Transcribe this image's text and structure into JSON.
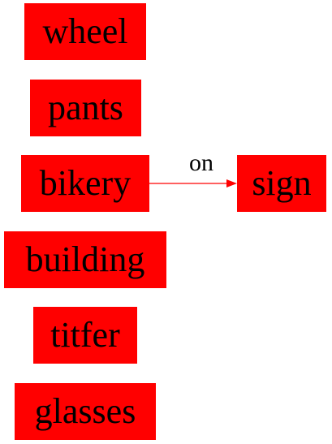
{
  "diagram": {
    "node_color": "#ff0000",
    "text_color": "#000000",
    "edge_color": "#ff0000",
    "nodes": [
      {
        "id": "wheel",
        "label": "wheel"
      },
      {
        "id": "pants",
        "label": "pants"
      },
      {
        "id": "bikery",
        "label": "bikery"
      },
      {
        "id": "sign",
        "label": "sign"
      },
      {
        "id": "building",
        "label": "building"
      },
      {
        "id": "titfer",
        "label": "titfer"
      },
      {
        "id": "glasses",
        "label": "glasses"
      }
    ],
    "edges": [
      {
        "from": "bikery",
        "to": "sign",
        "label": "on"
      }
    ]
  }
}
